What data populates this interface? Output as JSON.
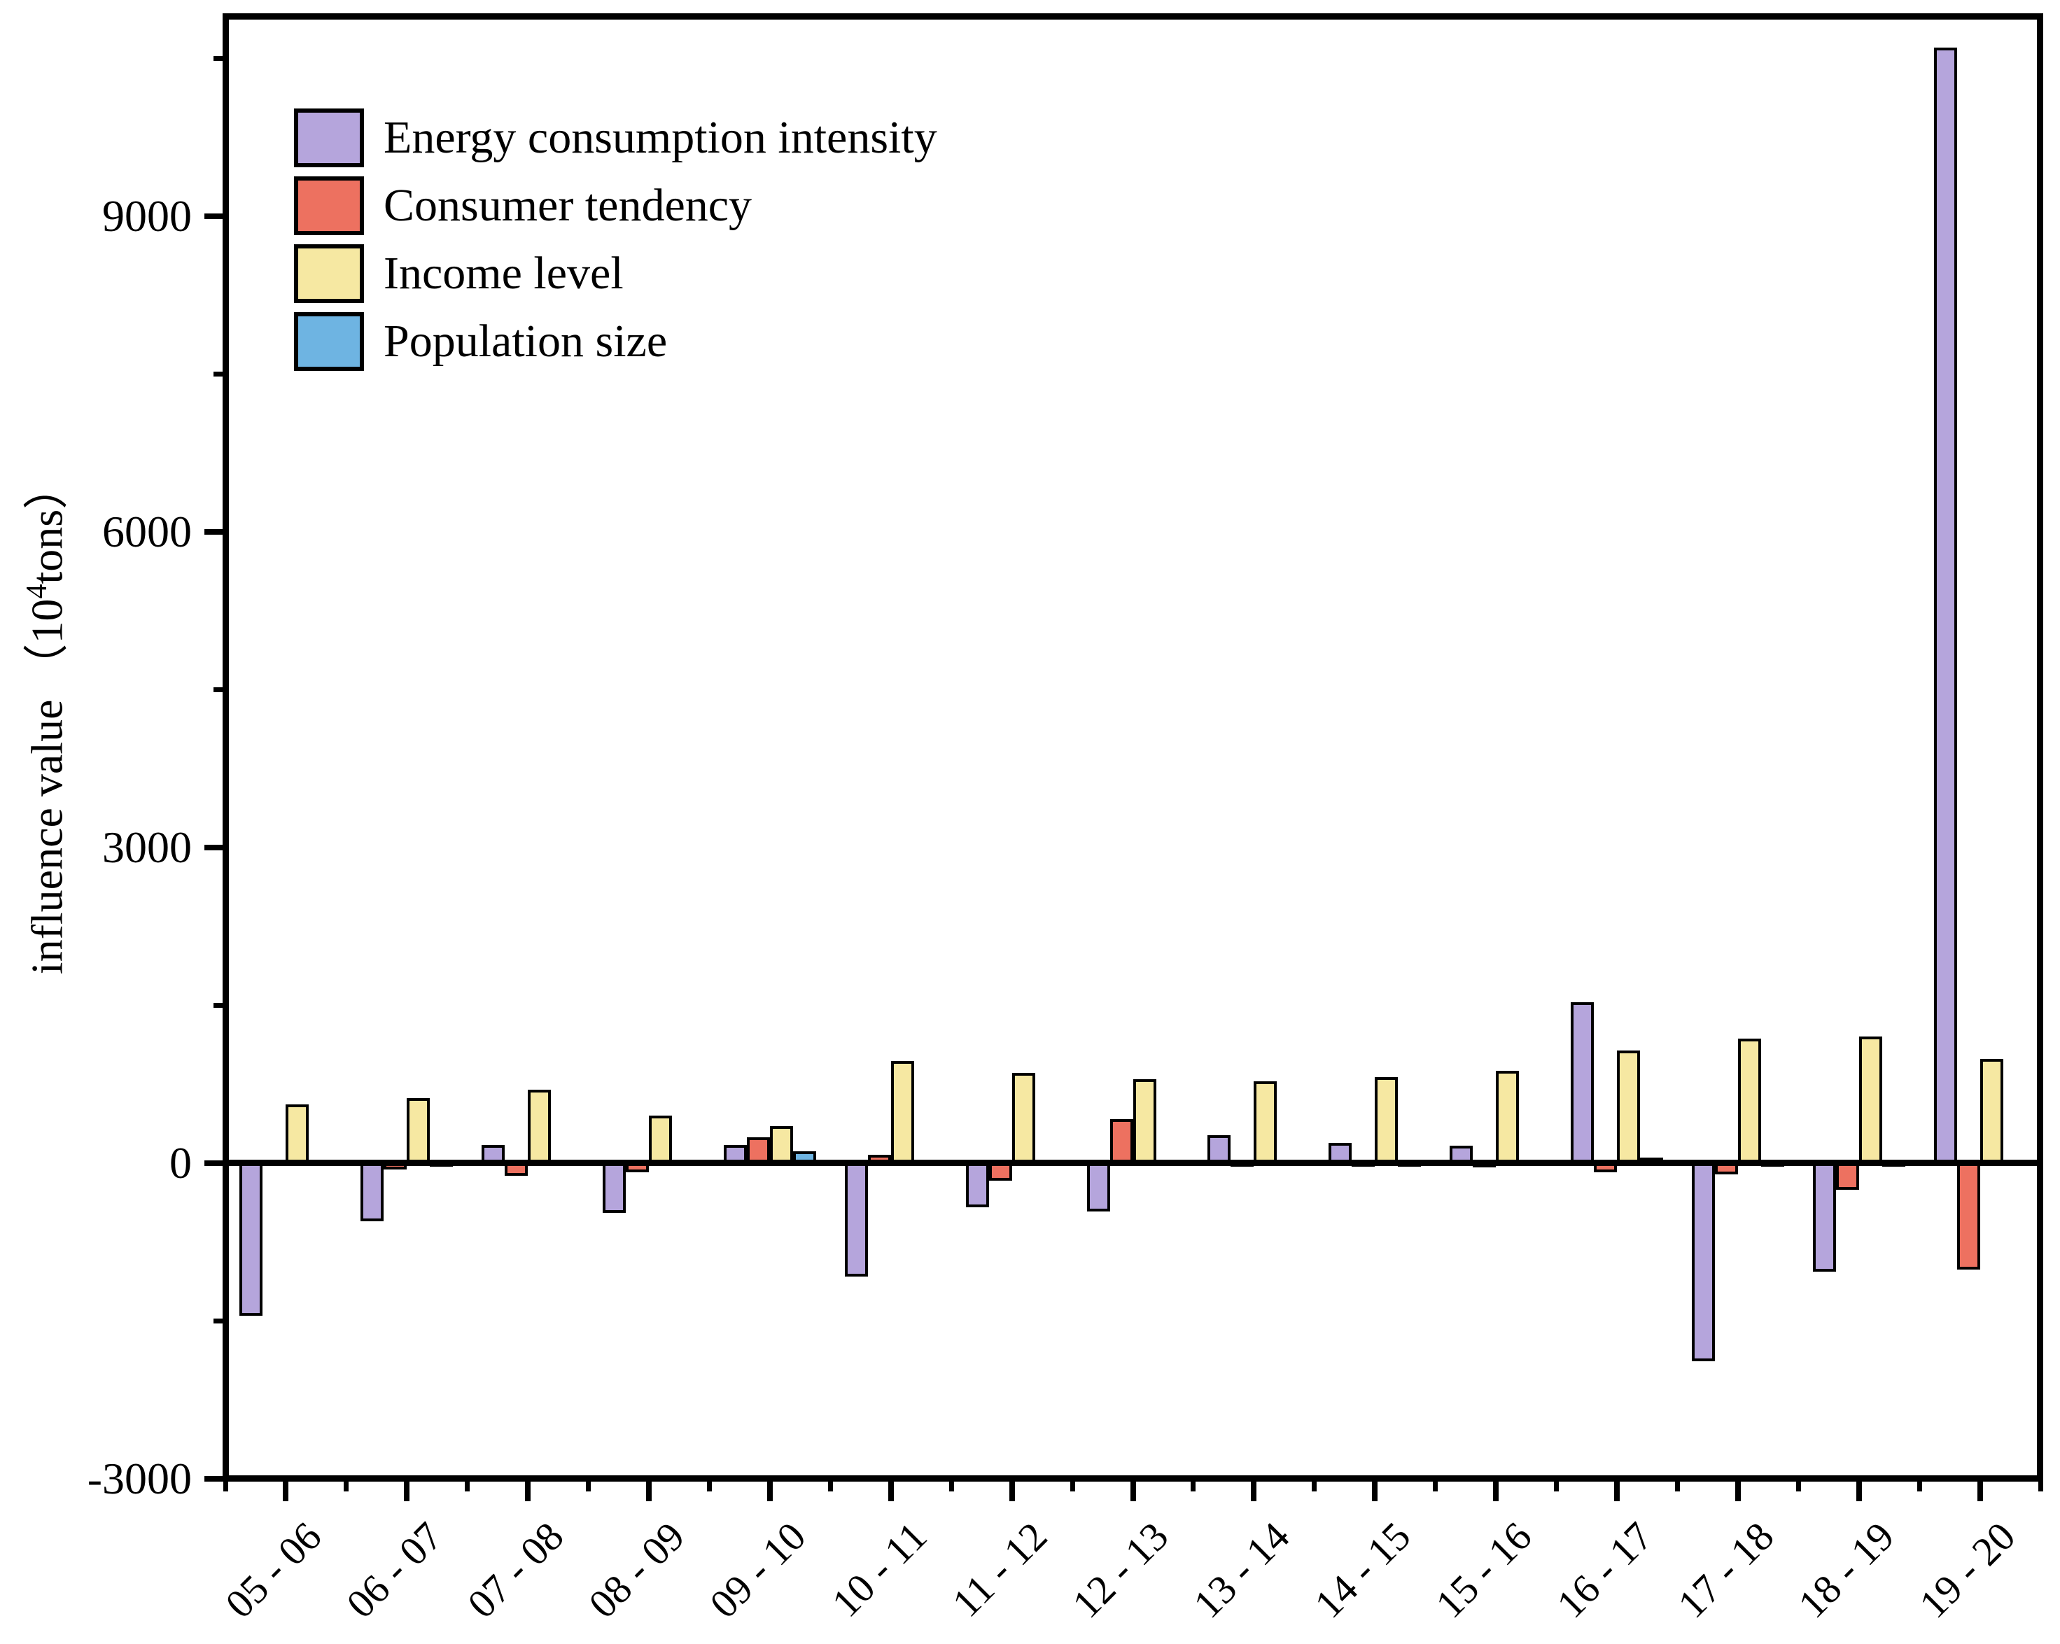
{
  "chart_data": {
    "type": "bar",
    "title": "",
    "ylabel_prefix": "influence value （10",
    "ylabel_sup": "4",
    "ylabel_suffix": "tons）",
    "xlabel": "",
    "categories": [
      "05 - 06",
      "06 - 07",
      "07 - 08",
      "08 - 09",
      "09 - 10",
      "10 - 11",
      "11 - 12",
      "12 - 13",
      "13 - 14",
      "14 - 15",
      "15 - 16",
      "16 - 17",
      "17 - 18",
      "18 - 19",
      "19 - 20"
    ],
    "series": [
      {
        "name": "Energy consumption intensity",
        "color": "#b5a5dc",
        "values": [
          -1450,
          -550,
          170,
          -475,
          170,
          -1080,
          -420,
          -460,
          265,
          190,
          165,
          1530,
          -1880,
          -1030,
          10600
        ]
      },
      {
        "name": "Consumer tendency",
        "color": "#ed7160",
        "values": [
          30,
          -60,
          -120,
          -85,
          245,
          80,
          -165,
          420,
          20,
          15,
          -40,
          -90,
          -110,
          -255,
          -1010
        ]
      },
      {
        "name": "Income level",
        "color": "#f6e8a2",
        "values": [
          560,
          620,
          700,
          455,
          350,
          970,
          860,
          800,
          780,
          820,
          880,
          1070,
          1180,
          1200,
          990
        ]
      },
      {
        "name": "Population size",
        "color": "#6eb4e2",
        "values": [
          25,
          20,
          25,
          25,
          110,
          30,
          25,
          25,
          25,
          20,
          30,
          50,
          20,
          20,
          25
        ]
      }
    ],
    "yticks_major": [
      -3000,
      0,
      3000,
      6000,
      9000
    ],
    "yticks_minor": [
      -1500,
      1500,
      4500,
      7500,
      10500
    ],
    "ylim": [
      -3000,
      10900
    ],
    "grid": false,
    "legend_position": "upper-left-inside",
    "axis_color": "#000000",
    "background_color": "#ffffff",
    "bar_border_color": "#000000",
    "x_tick_label_rotation_deg": 45
  }
}
